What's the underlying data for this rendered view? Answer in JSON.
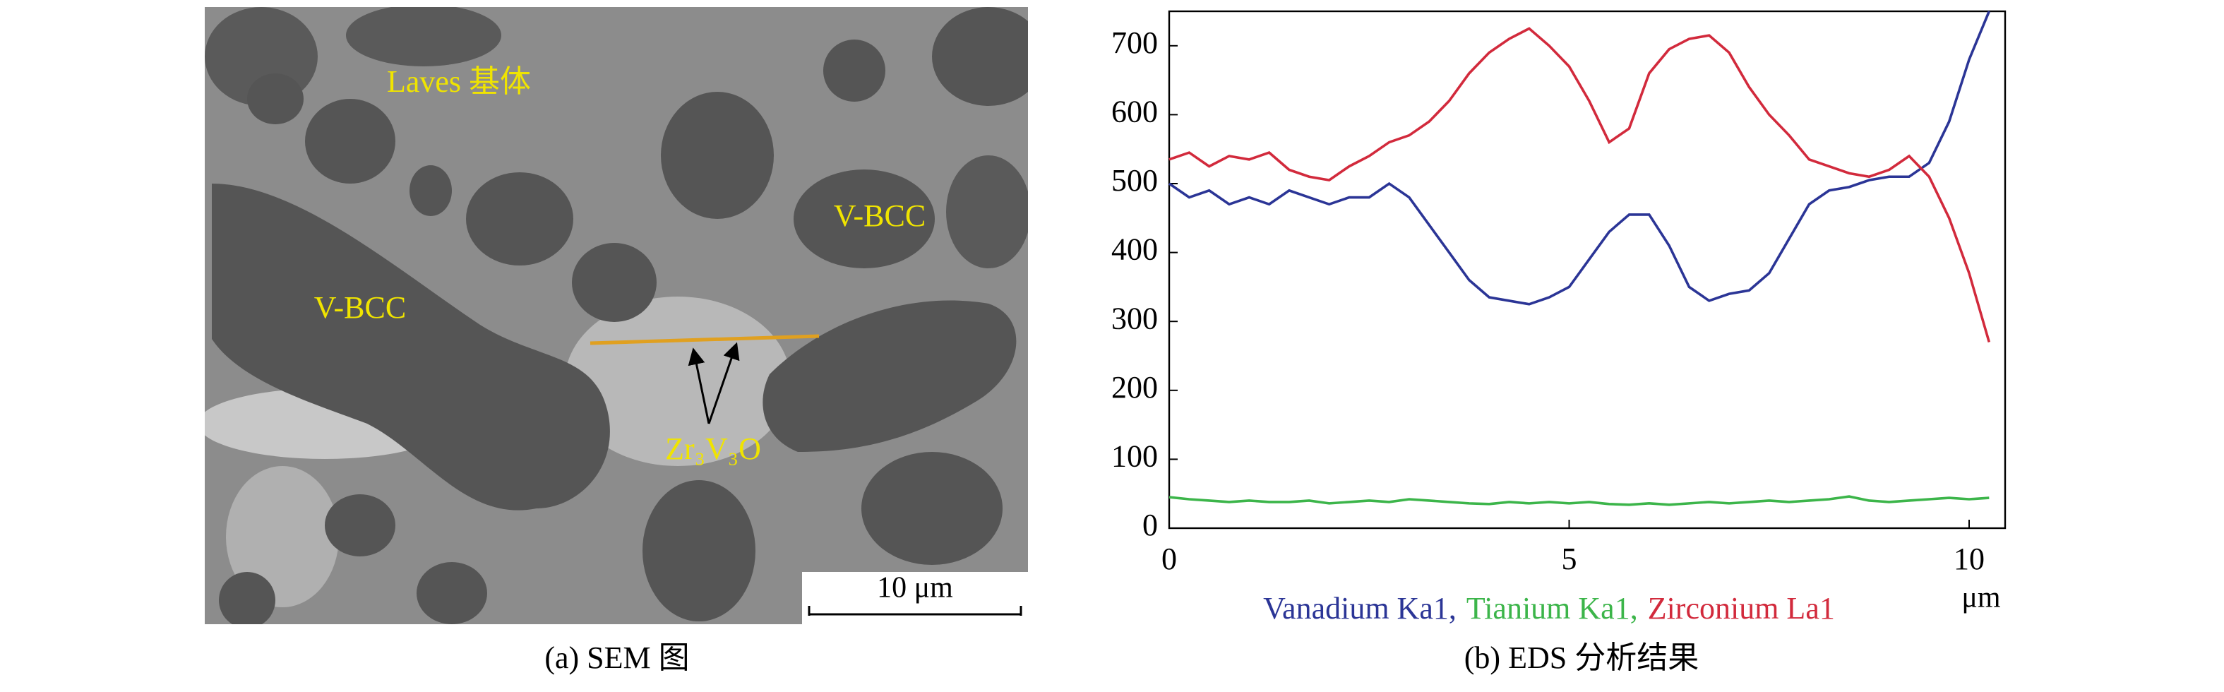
{
  "panel_a": {
    "caption": "(a) SEM 图",
    "labels": [
      "Laves 基体",
      "V-BCC",
      "V-BCC",
      "Zr₃V₃O"
    ],
    "scale_bar": "10 μm"
  },
  "chart_data": {
    "type": "line",
    "caption": "(b) EDS 分析结果",
    "x_unit": "μm",
    "x": [
      0,
      0.25,
      0.5,
      0.75,
      1,
      1.25,
      1.5,
      1.75,
      2,
      2.25,
      2.5,
      2.75,
      3,
      3.25,
      3.5,
      3.75,
      4,
      4.25,
      4.5,
      4.75,
      5,
      5.25,
      5.5,
      5.75,
      6,
      6.25,
      6.5,
      6.75,
      7,
      7.25,
      7.5,
      7.75,
      8,
      8.25,
      8.5,
      8.75,
      9,
      9.25,
      9.5,
      9.75,
      10,
      10.25
    ],
    "series": [
      {
        "name": "Vanadium Ka1,",
        "color": "#2b3596",
        "values": [
          500,
          480,
          490,
          470,
          480,
          470,
          490,
          480,
          470,
          480,
          480,
          500,
          480,
          440,
          400,
          360,
          335,
          330,
          325,
          335,
          350,
          390,
          430,
          455,
          455,
          410,
          350,
          330,
          340,
          345,
          370,
          420,
          470,
          490,
          495,
          505,
          510,
          510,
          530,
          590,
          680,
          750
        ]
      },
      {
        "name": "Tianium Ka1,",
        "color": "#3cb54a",
        "values": [
          45,
          42,
          40,
          38,
          40,
          38,
          38,
          40,
          36,
          38,
          40,
          38,
          42,
          40,
          38,
          36,
          35,
          38,
          36,
          38,
          36,
          38,
          35,
          34,
          36,
          34,
          36,
          38,
          36,
          38,
          40,
          38,
          40,
          42,
          46,
          40,
          38,
          40,
          42,
          44,
          42,
          44
        ]
      },
      {
        "name": "Zirconium La1",
        "color": "#d22a3c",
        "values": [
          535,
          545,
          525,
          540,
          535,
          545,
          520,
          510,
          505,
          525,
          540,
          560,
          570,
          590,
          620,
          660,
          690,
          710,
          725,
          700,
          670,
          620,
          560,
          580,
          660,
          695,
          710,
          715,
          690,
          640,
          600,
          570,
          535,
          525,
          515,
          510,
          520,
          540,
          510,
          450,
          370,
          270
        ]
      }
    ],
    "xlim": [
      0,
      10.45
    ],
    "xticks": [
      0,
      5,
      10
    ],
    "ylim": [
      0,
      750
    ],
    "yticks": [
      0,
      100,
      200,
      300,
      400,
      500,
      600,
      700
    ]
  }
}
